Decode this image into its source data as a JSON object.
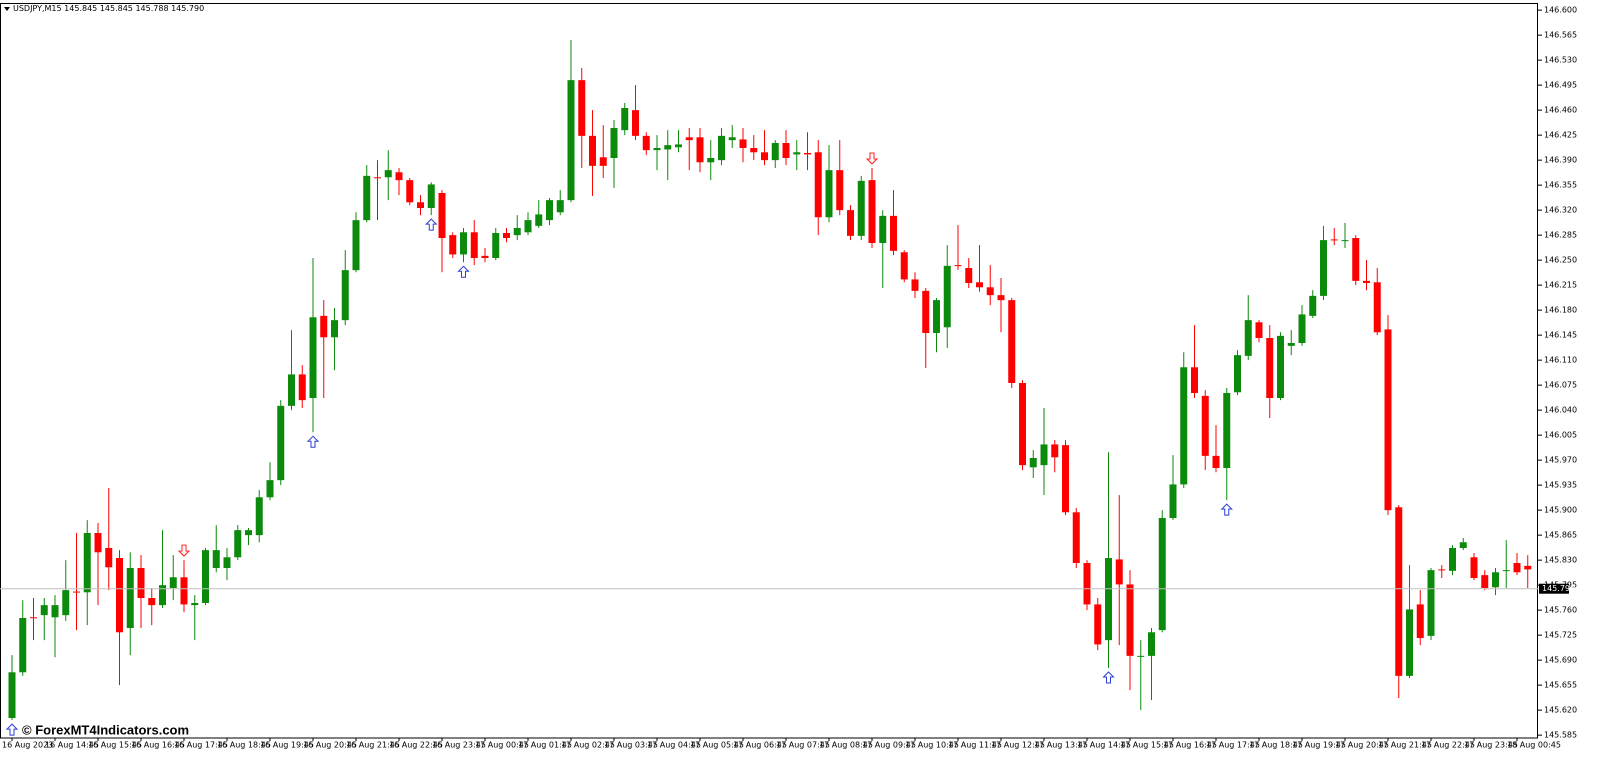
{
  "chart_data": {
    "type": "candlestick",
    "title": "USDJPY,M15",
    "header_values": [
      {
        "value": 145.845,
        "label": "145.845"
      },
      {
        "value": 145.845,
        "label": "145.845"
      },
      {
        "value": 145.788,
        "label": "145.788"
      },
      {
        "value": 145.79,
        "label": "145.790"
      }
    ],
    "watermark": "© ForexMT4Indicators.com",
    "categories": [
      "16 Aug 2023",
      null,
      null,
      null,
      "16 Aug 14:45",
      null,
      null,
      null,
      "16 Aug 15:45",
      null,
      null,
      null,
      "16 Aug 16:45",
      null,
      null,
      null,
      "16 Aug 17:45",
      null,
      null,
      null,
      "16 Aug 18:45",
      null,
      null,
      null,
      "16 Aug 19:45",
      null,
      null,
      null,
      "16 Aug 20:45",
      null,
      null,
      null,
      "16 Aug 21:45",
      null,
      null,
      null,
      "16 Aug 22:45",
      null,
      null,
      null,
      "16 Aug 23:45",
      null,
      null,
      null,
      "17 Aug 00:45",
      null,
      null,
      null,
      "17 Aug 01:45",
      null,
      null,
      null,
      "17 Aug 02:45",
      null,
      null,
      null,
      "17 Aug 03:45",
      null,
      null,
      null,
      "17 Aug 04:45",
      null,
      null,
      null,
      "17 Aug 05:45",
      null,
      null,
      null,
      "17 Aug 06:45",
      null,
      null,
      null,
      "17 Aug 07:45",
      null,
      null,
      null,
      "17 Aug 08:45",
      null,
      null,
      null,
      "17 Aug 09:45",
      null,
      null,
      null,
      "17 Aug 10:45",
      null,
      null,
      null,
      "17 Aug 11:45",
      null,
      null,
      null,
      "17 Aug 12:45",
      null,
      null,
      null,
      "17 Aug 13:45",
      null,
      null,
      null,
      "17 Aug 14:45",
      null,
      null,
      null,
      "17 Aug 15:45",
      null,
      null,
      null,
      "17 Aug 16:45",
      null,
      null,
      null,
      "17 Aug 17:45",
      null,
      null,
      null,
      "17 Aug 18:45",
      null,
      null,
      null,
      "17 Aug 19:45",
      null,
      null,
      null,
      "17 Aug 20:45",
      null,
      null,
      null,
      "17 Aug 21:45",
      null,
      null,
      null,
      "17 Aug 22:45",
      null,
      null,
      null,
      "17 Aug 23:45",
      null,
      null,
      null,
      "18 Aug 00:45",
      null
    ],
    "open": [
      145.609,
      145.673,
      145.75,
      145.753,
      145.75,
      145.753,
      145.786,
      145.785,
      145.868,
      145.847,
      145.833,
      145.735,
      145.819,
      145.777,
      145.767,
      145.791,
      145.806,
      145.767,
      145.77,
      145.819,
      145.819,
      145.834,
      145.865,
      145.865,
      145.918,
      145.942,
      146.046,
      146.09,
      146.057,
      146.172,
      146.142,
      146.166,
      146.236,
      146.306,
      146.366,
      146.366,
      146.373,
      146.362,
      146.331,
      146.323,
      146.344,
      146.285,
      146.258,
      146.289,
      146.256,
      146.253,
      146.288,
      146.285,
      146.289,
      146.298,
      146.306,
      146.317,
      146.334,
      146.502,
      146.424,
      146.394,
      146.393,
      146.432,
      146.46,
      146.424,
      146.404,
      146.405,
      146.408,
      146.422,
      146.422,
      146.387,
      146.39,
      146.418,
      146.419,
      146.407,
      146.401,
      146.39,
      146.414,
      146.398,
      146.4,
      146.401,
      146.31,
      146.376,
      146.32,
      146.284,
      146.362,
      146.274,
      146.312,
      146.261,
      146.223,
      146.207,
      146.148,
      146.156,
      146.243,
      146.239,
      146.219,
      146.212,
      146.201,
      146.194,
      146.078,
      145.96,
      145.963,
      145.992,
      145.991,
      145.897,
      145.826,
      145.768,
      145.718,
      145.831,
      145.796,
      145.695,
      145.696,
      145.732,
      145.889,
      145.936,
      146.1,
      146.06,
      145.976,
      145.959,
      146.065,
      146.116,
      146.163,
      146.141,
      146.057,
      146.13,
      146.134,
      146.172,
      146.2,
      146.279,
      146.277,
      146.281,
      146.221,
      146.219,
      146.153,
      145.904,
      145.668,
      145.768,
      145.724,
      145.817,
      145.815,
      145.847,
      145.834,
      145.809,
      145.792,
      145.815,
      145.826,
      145.822
    ],
    "high": [
      145.697,
      145.774,
      145.777,
      145.777,
      145.781,
      145.83,
      145.868,
      145.886,
      145.882,
      145.931,
      145.844,
      145.841,
      145.837,
      145.791,
      145.872,
      145.837,
      145.83,
      145.781,
      145.847,
      145.879,
      145.847,
      145.879,
      145.875,
      145.928,
      145.967,
      146.054,
      146.152,
      146.103,
      146.253,
      146.194,
      146.183,
      146.264,
      146.317,
      146.383,
      146.39,
      146.404,
      146.379,
      146.365,
      146.341,
      146.359,
      146.348,
      146.289,
      146.295,
      146.306,
      146.267,
      146.295,
      146.295,
      146.313,
      146.317,
      146.334,
      146.337,
      146.348,
      146.558,
      146.519,
      146.46,
      146.439,
      146.446,
      146.47,
      146.495,
      146.429,
      146.425,
      146.432,
      146.432,
      146.435,
      146.435,
      146.418,
      146.435,
      146.439,
      146.435,
      146.425,
      146.432,
      146.418,
      146.432,
      146.418,
      146.429,
      146.418,
      146.411,
      146.418,
      146.327,
      146.368,
      146.379,
      146.32,
      146.348,
      146.264,
      146.233,
      146.211,
      146.197,
      146.271,
      146.299,
      146.253,
      146.271,
      146.243,
      146.225,
      146.197,
      146.082,
      145.984,
      146.043,
      145.998,
      145.998,
      145.903,
      145.83,
      145.777,
      145.981,
      145.921,
      145.816,
      145.718,
      145.735,
      145.9,
      145.977,
      146.121,
      146.159,
      146.068,
      146.019,
      146.071,
      146.124,
      146.201,
      146.166,
      146.159,
      146.149,
      146.152,
      146.187,
      146.208,
      146.298,
      146.295,
      146.302,
      146.285,
      146.25,
      146.239,
      146.173,
      145.907,
      145.823,
      145.788,
      145.819,
      145.823,
      145.851,
      145.861,
      145.84,
      145.816,
      145.819,
      145.858,
      145.84,
      145.837
    ],
    "low": [
      145.606,
      145.668,
      145.718,
      145.718,
      145.694,
      145.745,
      145.732,
      145.739,
      145.767,
      145.788,
      145.655,
      145.697,
      145.735,
      145.739,
      145.763,
      145.774,
      145.757,
      145.718,
      145.767,
      145.813,
      145.802,
      145.83,
      145.851,
      145.855,
      145.914,
      145.935,
      146.04,
      146.043,
      146.009,
      146.057,
      146.096,
      146.159,
      146.233,
      146.303,
      146.306,
      146.334,
      146.341,
      146.327,
      146.313,
      146.313,
      146.233,
      146.253,
      146.247,
      146.243,
      146.247,
      146.25,
      146.275,
      146.278,
      146.285,
      146.295,
      146.299,
      146.313,
      146.331,
      146.379,
      146.34,
      146.365,
      146.351,
      146.425,
      146.418,
      146.397,
      146.376,
      146.362,
      146.401,
      146.376,
      146.373,
      146.362,
      146.383,
      146.407,
      146.387,
      146.39,
      146.383,
      146.379,
      146.383,
      146.376,
      146.376,
      146.285,
      146.303,
      146.313,
      146.278,
      146.278,
      146.267,
      146.211,
      146.257,
      146.219,
      146.197,
      146.099,
      146.121,
      146.127,
      146.236,
      146.211,
      146.206,
      146.187,
      146.149,
      146.071,
      145.956,
      145.945,
      145.921,
      145.953,
      145.893,
      145.819,
      145.76,
      145.704,
      145.679,
      145.711,
      145.648,
      145.62,
      145.634,
      145.729,
      145.886,
      145.931,
      146.057,
      145.956,
      145.953,
      145.914,
      146.061,
      146.11,
      146.135,
      146.029,
      146.054,
      146.117,
      146.13,
      146.169,
      146.194,
      146.271,
      146.267,
      146.215,
      146.208,
      146.145,
      145.893,
      145.637,
      145.665,
      145.711,
      145.718,
      145.805,
      145.809,
      145.844,
      145.802,
      145.788,
      145.781,
      145.791,
      145.809,
      145.791
    ],
    "close": [
      145.673,
      145.749,
      145.749,
      145.767,
      145.767,
      145.788,
      145.785,
      145.868,
      145.841,
      145.82,
      145.729,
      145.819,
      145.777,
      145.767,
      145.795,
      145.806,
      145.768,
      145.77,
      145.844,
      145.844,
      145.834,
      145.872,
      145.872,
      145.918,
      145.942,
      146.046,
      146.09,
      146.054,
      146.17,
      146.142,
      146.166,
      146.236,
      146.306,
      146.368,
      146.365,
      146.376,
      146.362,
      146.331,
      146.323,
      146.356,
      146.281,
      146.258,
      146.289,
      146.253,
      146.253,
      146.288,
      146.281,
      146.295,
      146.306,
      146.314,
      146.334,
      146.334,
      146.502,
      146.424,
      146.382,
      146.382,
      146.435,
      146.463,
      146.424,
      146.404,
      146.407,
      146.411,
      146.412,
      146.418,
      146.387,
      146.393,
      146.424,
      146.422,
      146.407,
      146.401,
      146.39,
      146.414,
      146.393,
      146.401,
      146.398,
      146.31,
      146.376,
      146.32,
      146.284,
      146.361,
      146.274,
      146.312,
      146.263,
      146.223,
      146.207,
      146.148,
      146.194,
      146.242,
      146.242,
      146.218,
      146.212,
      146.201,
      146.194,
      146.078,
      145.963,
      145.973,
      145.992,
      145.974,
      145.897,
      145.826,
      145.768,
      145.712,
      145.833,
      145.796,
      145.696,
      145.696,
      145.729,
      145.889,
      145.936,
      146.1,
      146.064,
      145.976,
      145.959,
      146.064,
      146.117,
      146.166,
      146.141,
      146.057,
      146.144,
      146.134,
      146.174,
      146.2,
      146.278,
      146.278,
      146.278,
      146.221,
      146.218,
      146.149,
      145.9,
      145.668,
      145.761,
      145.721,
      145.816,
      145.816,
      145.847,
      145.855,
      145.805,
      145.791,
      145.813,
      145.816,
      145.813,
      145.817
    ],
    "up_color": "#0b8a0b",
    "down_color": "#ff0000",
    "buy_signals": [
      0,
      28,
      39,
      42,
      102,
      113
    ],
    "sell_signals": [
      16,
      80
    ],
    "buy_color": "#2a3fd6",
    "sell_color": "#ff2020",
    "bid": {
      "value": 145.79,
      "label": "145.790"
    },
    "ylim": [
      145.581,
      146.61
    ],
    "yticks": [
      {
        "value": 146.6,
        "label": "146.600"
      },
      146.565,
      {
        "value": 146.53,
        "label": "146.530"
      },
      146.495,
      {
        "value": 146.46,
        "label": "146.460"
      },
      146.425,
      {
        "value": 146.39,
        "label": "146.390"
      },
      146.355,
      {
        "value": 146.32,
        "label": "146.320"
      },
      146.285,
      {
        "value": 146.25,
        "label": "146.250"
      },
      146.215,
      {
        "value": 146.18,
        "label": "146.180"
      },
      146.145,
      {
        "value": 146.11,
        "label": "146.110"
      },
      146.075,
      {
        "value": 146.04,
        "label": "146.040"
      },
      146.005,
      {
        "value": 145.97,
        "label": "145.970"
      },
      145.935,
      {
        "value": 145.9,
        "label": "145.900"
      },
      145.865,
      {
        "value": 145.83,
        "label": "145.830"
      },
      145.795,
      {
        "value": 145.76,
        "label": "145.760"
      },
      145.725,
      {
        "value": 145.69,
        "label": "145.690"
      },
      145.655,
      {
        "value": 145.62,
        "label": "145.620"
      },
      145.585
    ]
  }
}
